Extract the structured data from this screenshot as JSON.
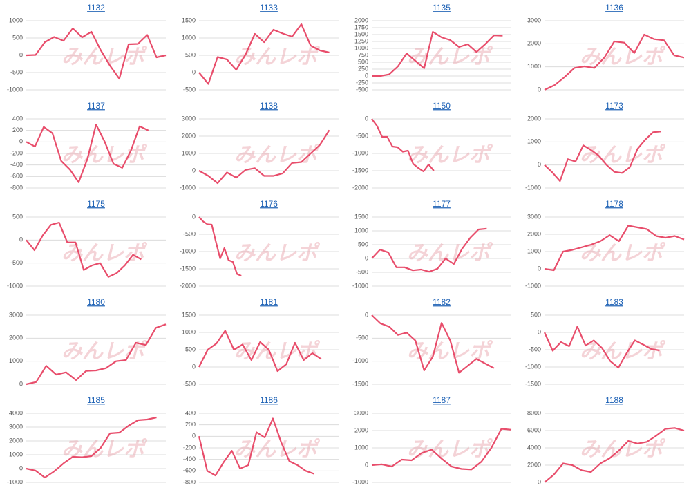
{
  "watermark": "みんレポ",
  "chart_data": [
    {
      "type": "line",
      "title": "1132",
      "color": "#e84d6b",
      "ylim": [
        -1000,
        1000
      ],
      "yticks": [
        -1000,
        -500,
        0,
        500,
        1000
      ],
      "values": [
        0,
        10,
        380,
        530,
        420,
        780,
        520,
        680,
        150,
        -300,
        -680,
        320,
        330,
        590,
        -60,
        0
      ]
    },
    {
      "type": "line",
      "title": "1133",
      "color": "#e84d6b",
      "ylim": [
        -500,
        1500
      ],
      "yticks": [
        -500,
        0,
        500,
        1000,
        1500
      ],
      "values": [
        0,
        -330,
        450,
        380,
        80,
        520,
        1120,
        880,
        1240,
        1130,
        1040,
        1400,
        780,
        640,
        580,
        null
      ]
    },
    {
      "type": "line",
      "title": "1135",
      "color": "#e84d6b",
      "ylim": [
        -500,
        2000
      ],
      "yticks": [
        -500,
        -250,
        0,
        250,
        500,
        750,
        1000,
        1250,
        1500,
        1750,
        2000
      ],
      "values": [
        0,
        0,
        60,
        350,
        820,
        550,
        280,
        1600,
        1400,
        1300,
        1050,
        1150,
        870,
        1150,
        1470,
        1460,
        null
      ]
    },
    {
      "type": "line",
      "title": "1136",
      "color": "#e84d6b",
      "ylim": [
        0,
        3000
      ],
      "yticks": [
        0,
        1000,
        2000,
        3000
      ],
      "values": [
        0,
        200,
        550,
        950,
        1020,
        950,
        1400,
        2100,
        2050,
        1600,
        2400,
        2200,
        2150,
        1500,
        1400
      ]
    },
    {
      "type": "line",
      "title": "1137",
      "color": "#e84d6b",
      "ylim": [
        -800,
        400
      ],
      "yticks": [
        -800,
        -600,
        -400,
        -200,
        0,
        200,
        400
      ],
      "values": [
        0,
        -80,
        260,
        150,
        -330,
        -480,
        -700,
        -300,
        300,
        0,
        -380,
        -450,
        -150,
        270,
        200,
        null,
        null
      ]
    },
    {
      "type": "line",
      "title": "1138",
      "color": "#e84d6b",
      "ylim": [
        -1000,
        3000
      ],
      "yticks": [
        -1000,
        0,
        1000,
        2000,
        3000
      ],
      "values": [
        0,
        -300,
        -720,
        -100,
        -400,
        50,
        150,
        -300,
        -300,
        -150,
        450,
        500,
        1000,
        1500,
        2350,
        null
      ]
    },
    {
      "type": "line",
      "title": "1150",
      "color": "#e84d6b",
      "ylim": [
        -2000,
        0
      ],
      "yticks": [
        -2000,
        -1500,
        -1000,
        -500,
        0
      ],
      "values": [
        0,
        -200,
        -520,
        -520,
        -800,
        -820,
        -950,
        -920,
        -1300,
        -1420,
        -1520,
        -1320,
        -1500,
        null,
        null,
        null,
        null,
        null,
        null,
        null,
        null,
        null,
        null,
        null,
        null,
        null,
        null,
        null
      ]
    },
    {
      "type": "line",
      "title": "1173",
      "color": "#e84d6b",
      "ylim": [
        -1000,
        2000
      ],
      "yticks": [
        -1000,
        0,
        1000,
        2000
      ],
      "values": [
        0,
        -320,
        -700,
        250,
        150,
        850,
        650,
        400,
        0,
        -300,
        -350,
        -100,
        700,
        1100,
        1420,
        1450,
        null,
        null,
        null
      ]
    },
    {
      "type": "line",
      "title": "1175",
      "color": "#e84d6b",
      "ylim": [
        -1000,
        500
      ],
      "yticks": [
        -1000,
        -500,
        0,
        500
      ],
      "values": [
        0,
        -220,
        100,
        330,
        380,
        -50,
        -50,
        -650,
        -550,
        -500,
        -800,
        -720,
        -550,
        -320,
        -420,
        null,
        null,
        null
      ]
    },
    {
      "type": "line",
      "title": "1176",
      "color": "#e84d6b",
      "ylim": [
        -2000,
        0
      ],
      "yticks": [
        -2000,
        -1500,
        -1000,
        -500,
        0
      ],
      "values": [
        0,
        -130,
        -210,
        -220,
        -720,
        -1200,
        -900,
        -1250,
        -1300,
        -1650,
        -1700,
        null,
        null,
        null,
        null,
        null,
        null,
        null,
        null,
        null,
        null,
        null,
        null,
        null,
        null,
        null,
        null,
        null,
        null,
        null,
        null,
        null,
        null,
        null
      ]
    },
    {
      "type": "line",
      "title": "1177",
      "color": "#e84d6b",
      "ylim": [
        -1000,
        1500
      ],
      "yticks": [
        -1000,
        -500,
        0,
        500,
        1000,
        1500
      ],
      "values": [
        0,
        320,
        220,
        -320,
        -320,
        -430,
        -400,
        -480,
        -370,
        0,
        -200,
        350,
        750,
        1050,
        1080,
        null,
        null,
        null
      ]
    },
    {
      "type": "line",
      "title": "1178",
      "color": "#e84d6b",
      "ylim": [
        -1000,
        3000
      ],
      "yticks": [
        -1000,
        0,
        1000,
        2000,
        3000
      ],
      "values": [
        0,
        -80,
        1000,
        1100,
        1250,
        1400,
        1600,
        1950,
        1600,
        2500,
        2400,
        2300,
        1900,
        1800,
        1900,
        1700
      ]
    },
    {
      "type": "line",
      "title": "1180",
      "color": "#e84d6b",
      "ylim": [
        0,
        3000
      ],
      "yticks": [
        0,
        1000,
        2000,
        3000
      ],
      "values": [
        0,
        100,
        800,
        420,
        520,
        180,
        580,
        600,
        700,
        1000,
        1050,
        1800,
        1700,
        2450,
        2600
      ]
    },
    {
      "type": "line",
      "title": "1181",
      "color": "#e84d6b",
      "ylim": [
        -500,
        1500
      ],
      "yticks": [
        -500,
        0,
        500,
        1000,
        1500
      ],
      "values": [
        0,
        500,
        680,
        1050,
        500,
        650,
        200,
        720,
        500,
        -120,
        80,
        700,
        200,
        400,
        230,
        null,
        null
      ]
    },
    {
      "type": "line",
      "title": "1182",
      "color": "#e84d6b",
      "ylim": [
        -1500,
        0
      ],
      "yticks": [
        -1500,
        -1000,
        -500,
        0
      ],
      "values": [
        0,
        -180,
        -250,
        -430,
        -380,
        -550,
        -1200,
        -900,
        -170,
        -550,
        -1250,
        -1100,
        -950,
        -1050,
        -1150,
        null,
        null
      ]
    },
    {
      "type": "line",
      "title": "1183",
      "color": "#e84d6b",
      "ylim": [
        -1500,
        500
      ],
      "yticks": [
        -1500,
        -1000,
        -500,
        0,
        500
      ],
      "values": [
        0,
        -530,
        -280,
        -400,
        170,
        -380,
        -230,
        -450,
        -830,
        -1020,
        -600,
        -230,
        -350,
        -480,
        -520,
        null,
        null,
        null
      ]
    },
    {
      "type": "line",
      "title": "1185",
      "color": "#e84d6b",
      "ylim": [
        -1000,
        4000
      ],
      "yticks": [
        -1000,
        0,
        1000,
        2000,
        3000,
        4000
      ],
      "values": [
        0,
        -150,
        -650,
        -200,
        380,
        850,
        820,
        900,
        1500,
        2550,
        2600,
        3100,
        3500,
        3550,
        3700,
        null
      ]
    },
    {
      "type": "line",
      "title": "1186",
      "color": "#e84d6b",
      "ylim": [
        -800,
        400
      ],
      "yticks": [
        -800,
        -600,
        -400,
        -200,
        0,
        200,
        400
      ],
      "values": [
        0,
        -600,
        -680,
        -450,
        -250,
        -560,
        -500,
        70,
        -20,
        310,
        -100,
        -430,
        -500,
        -600,
        -650,
        null,
        null,
        null
      ]
    },
    {
      "type": "line",
      "title": "1187",
      "color": "#e84d6b",
      "ylim": [
        -1000,
        3000
      ],
      "yticks": [
        -1000,
        0,
        1000,
        2000,
        3000
      ],
      "values": [
        0,
        50,
        -80,
        320,
        280,
        700,
        900,
        380,
        -80,
        -220,
        -250,
        200,
        1000,
        2100,
        2050
      ]
    },
    {
      "type": "line",
      "title": "1188",
      "color": "#e84d6b",
      "ylim": [
        0,
        8000
      ],
      "yticks": [
        0,
        2000,
        4000,
        6000,
        8000
      ],
      "values": [
        0,
        900,
        2200,
        2000,
        1400,
        1200,
        2200,
        2800,
        3700,
        4800,
        4500,
        4700,
        5400,
        6200,
        6300,
        6000
      ]
    }
  ]
}
